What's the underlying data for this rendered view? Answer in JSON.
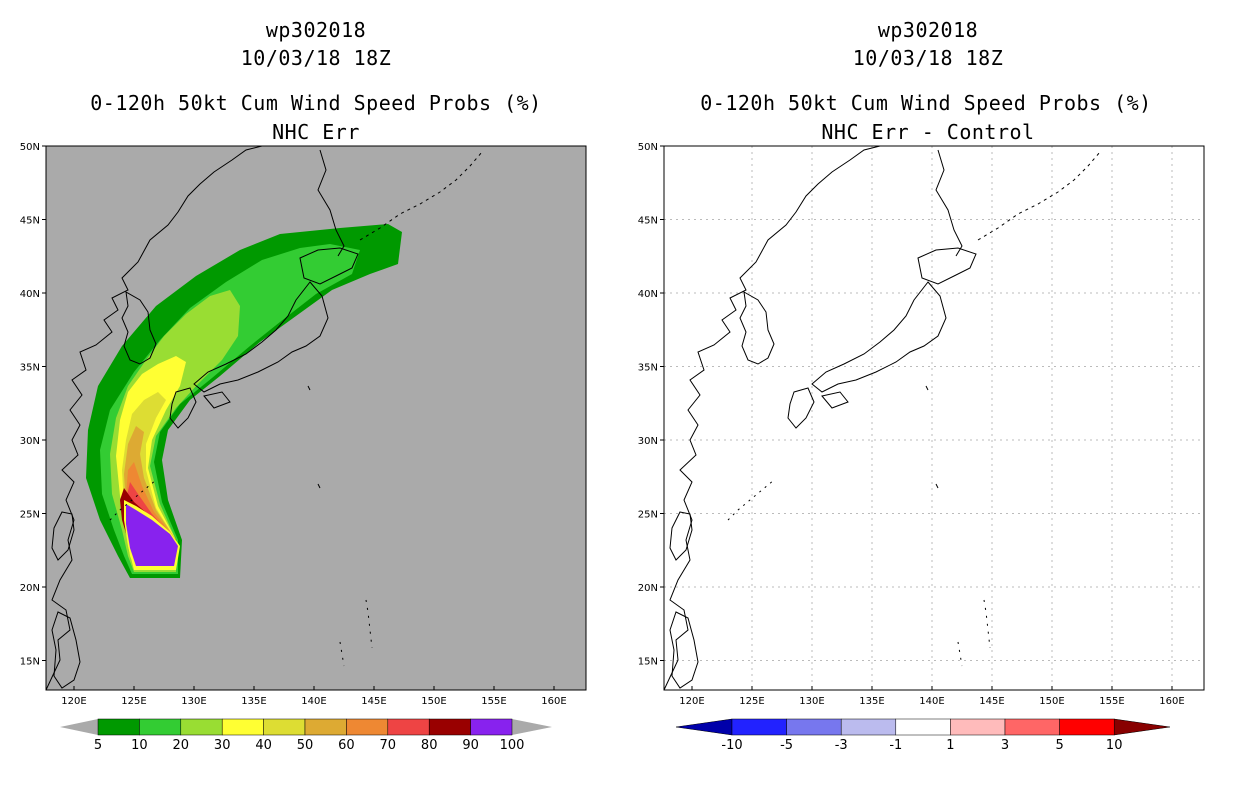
{
  "left_panel": {
    "storm_id": "wp302018",
    "datetime": "10/03/18 18Z",
    "title": "0-120h 50kt Cum Wind Speed Probs (%)",
    "subtitle": "NHC Err",
    "colorbar": {
      "labels": [
        "5",
        "10",
        "20",
        "30",
        "40",
        "50",
        "60",
        "70",
        "80",
        "90",
        "100"
      ],
      "colors": [
        "#009900",
        "#33cc33",
        "#99dd33",
        "#ffff33",
        "#dddd33",
        "#ddaa33",
        "#ee8833",
        "#ee4444",
        "#990000",
        "#8822ee"
      ]
    },
    "background_color": "#aaaaaa"
  },
  "right_panel": {
    "storm_id": "wp302018",
    "datetime": "10/03/18 18Z",
    "title": "0-120h 50kt Cum Wind Speed Probs (%)",
    "subtitle": "NHC Err - Control",
    "colorbar": {
      "labels": [
        "-10",
        "-5",
        "-3",
        "-1",
        "1",
        "3",
        "5",
        "10"
      ],
      "colors": [
        "#0000aa",
        "#2222ff",
        "#7777ee",
        "#bbbbee",
        "#ffffff",
        "#ffbbbb",
        "#ff6666",
        "#ff0000",
        "#880000"
      ]
    },
    "background_color": "#ffffff"
  },
  "axes": {
    "lon_labels": [
      "120E",
      "125E",
      "130E",
      "135E",
      "140E",
      "145E",
      "150E",
      "155E",
      "160E"
    ],
    "lat_labels": [
      "50N",
      "45N",
      "40N",
      "35N",
      "30N",
      "25N",
      "20N",
      "15N"
    ]
  }
}
